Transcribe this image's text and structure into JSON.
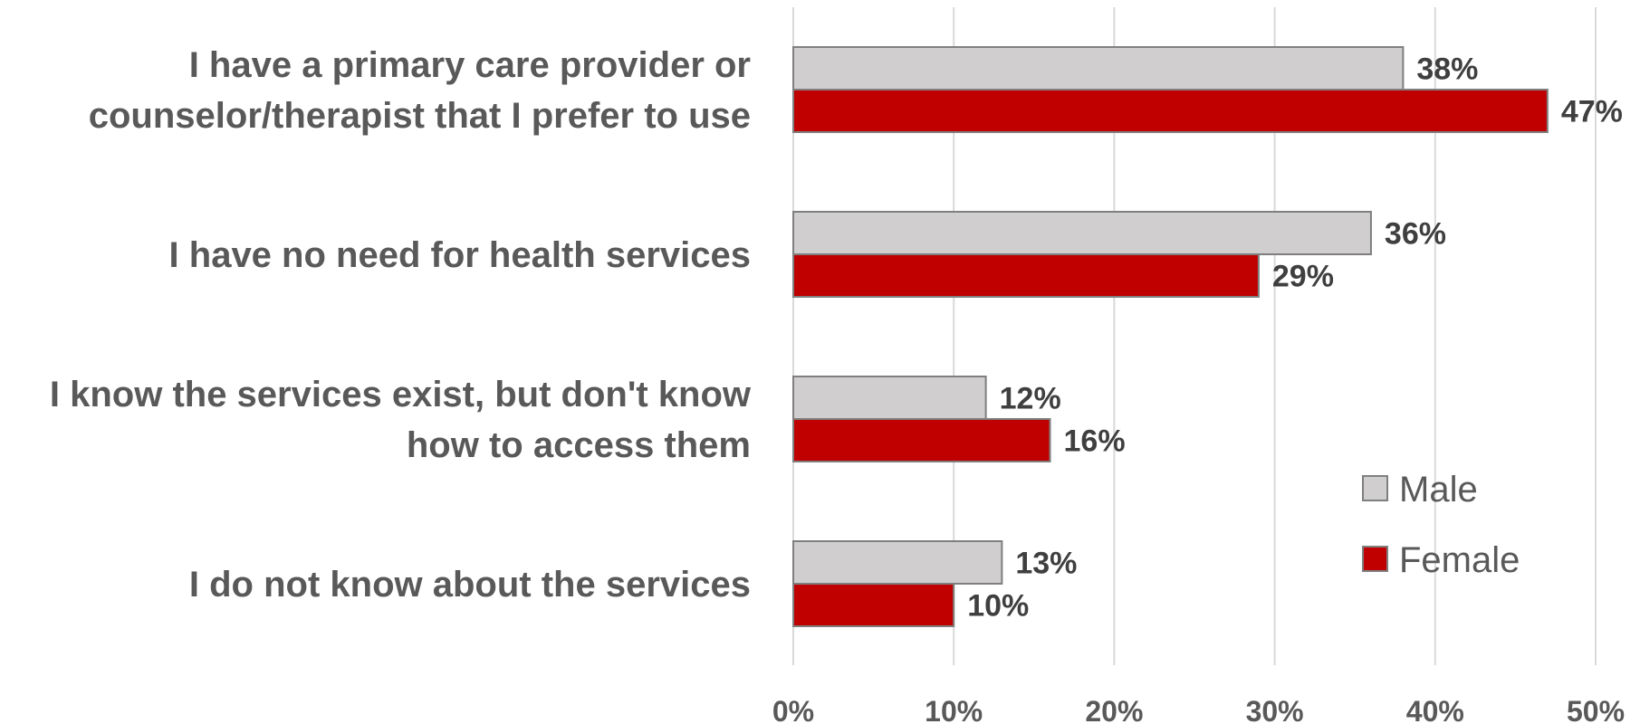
{
  "chart_data": {
    "type": "bar",
    "orientation": "horizontal",
    "categories": [
      [
        "I have a primary care provider or",
        "counselor/therapist that I prefer to use"
      ],
      [
        "I have no need for health services"
      ],
      [
        "I know the services exist, but don't know",
        "how to access them"
      ],
      [
        "I do not know about the services"
      ]
    ],
    "series": [
      {
        "name": "Male",
        "color": "#d0cece",
        "values": [
          38,
          36,
          12,
          13
        ],
        "labels": [
          "38%",
          "36%",
          "12%",
          "13%"
        ]
      },
      {
        "name": "Female",
        "color": "#c00000",
        "values": [
          47,
          29,
          16,
          10
        ],
        "labels": [
          "47%",
          "29%",
          "16%",
          "10%"
        ]
      }
    ],
    "xlim": [
      0,
      50
    ],
    "xticks": [
      0,
      10,
      20,
      30,
      40,
      50
    ],
    "xtick_labels": [
      "0%",
      "10%",
      "20%",
      "30%",
      "40%",
      "50%"
    ],
    "grid": "vertical",
    "legend": "bottom-right",
    "title": "",
    "xlabel": "",
    "ylabel": ""
  }
}
